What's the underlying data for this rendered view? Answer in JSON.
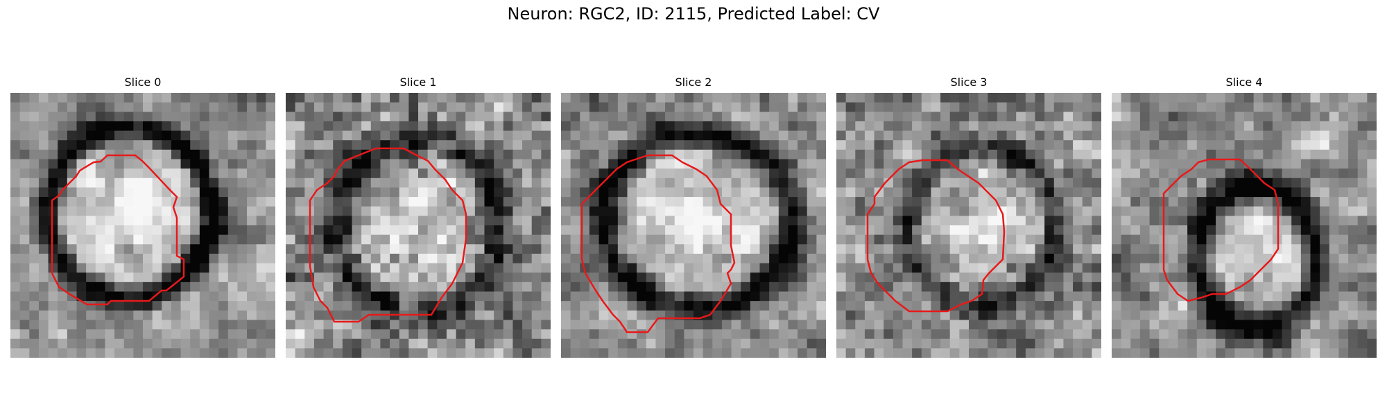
{
  "figure": {
    "title": "Neuron: RGC2, ID: 2115, Predicted Label: CV"
  },
  "panels": [
    {
      "title": "Slice 0",
      "seed": 11,
      "ring_dark": 0.62,
      "inner_bright": 0.35,
      "noise": 0.18
    },
    {
      "title": "Slice 1",
      "seed": 23,
      "ring_dark": 0.45,
      "inner_bright": 0.2,
      "noise": 0.38
    },
    {
      "title": "Slice 2",
      "seed": 37,
      "ring_dark": 0.55,
      "inner_bright": 0.3,
      "noise": 0.22
    },
    {
      "title": "Slice 3",
      "seed": 53,
      "ring_dark": 0.4,
      "inner_bright": 0.2,
      "noise": 0.32
    },
    {
      "title": "Slice 4",
      "seed": 71,
      "ring_dark": 0.6,
      "inner_bright": 0.3,
      "noise": 0.2
    }
  ],
  "contour_color": "#e8191a",
  "colormap": "gray"
}
